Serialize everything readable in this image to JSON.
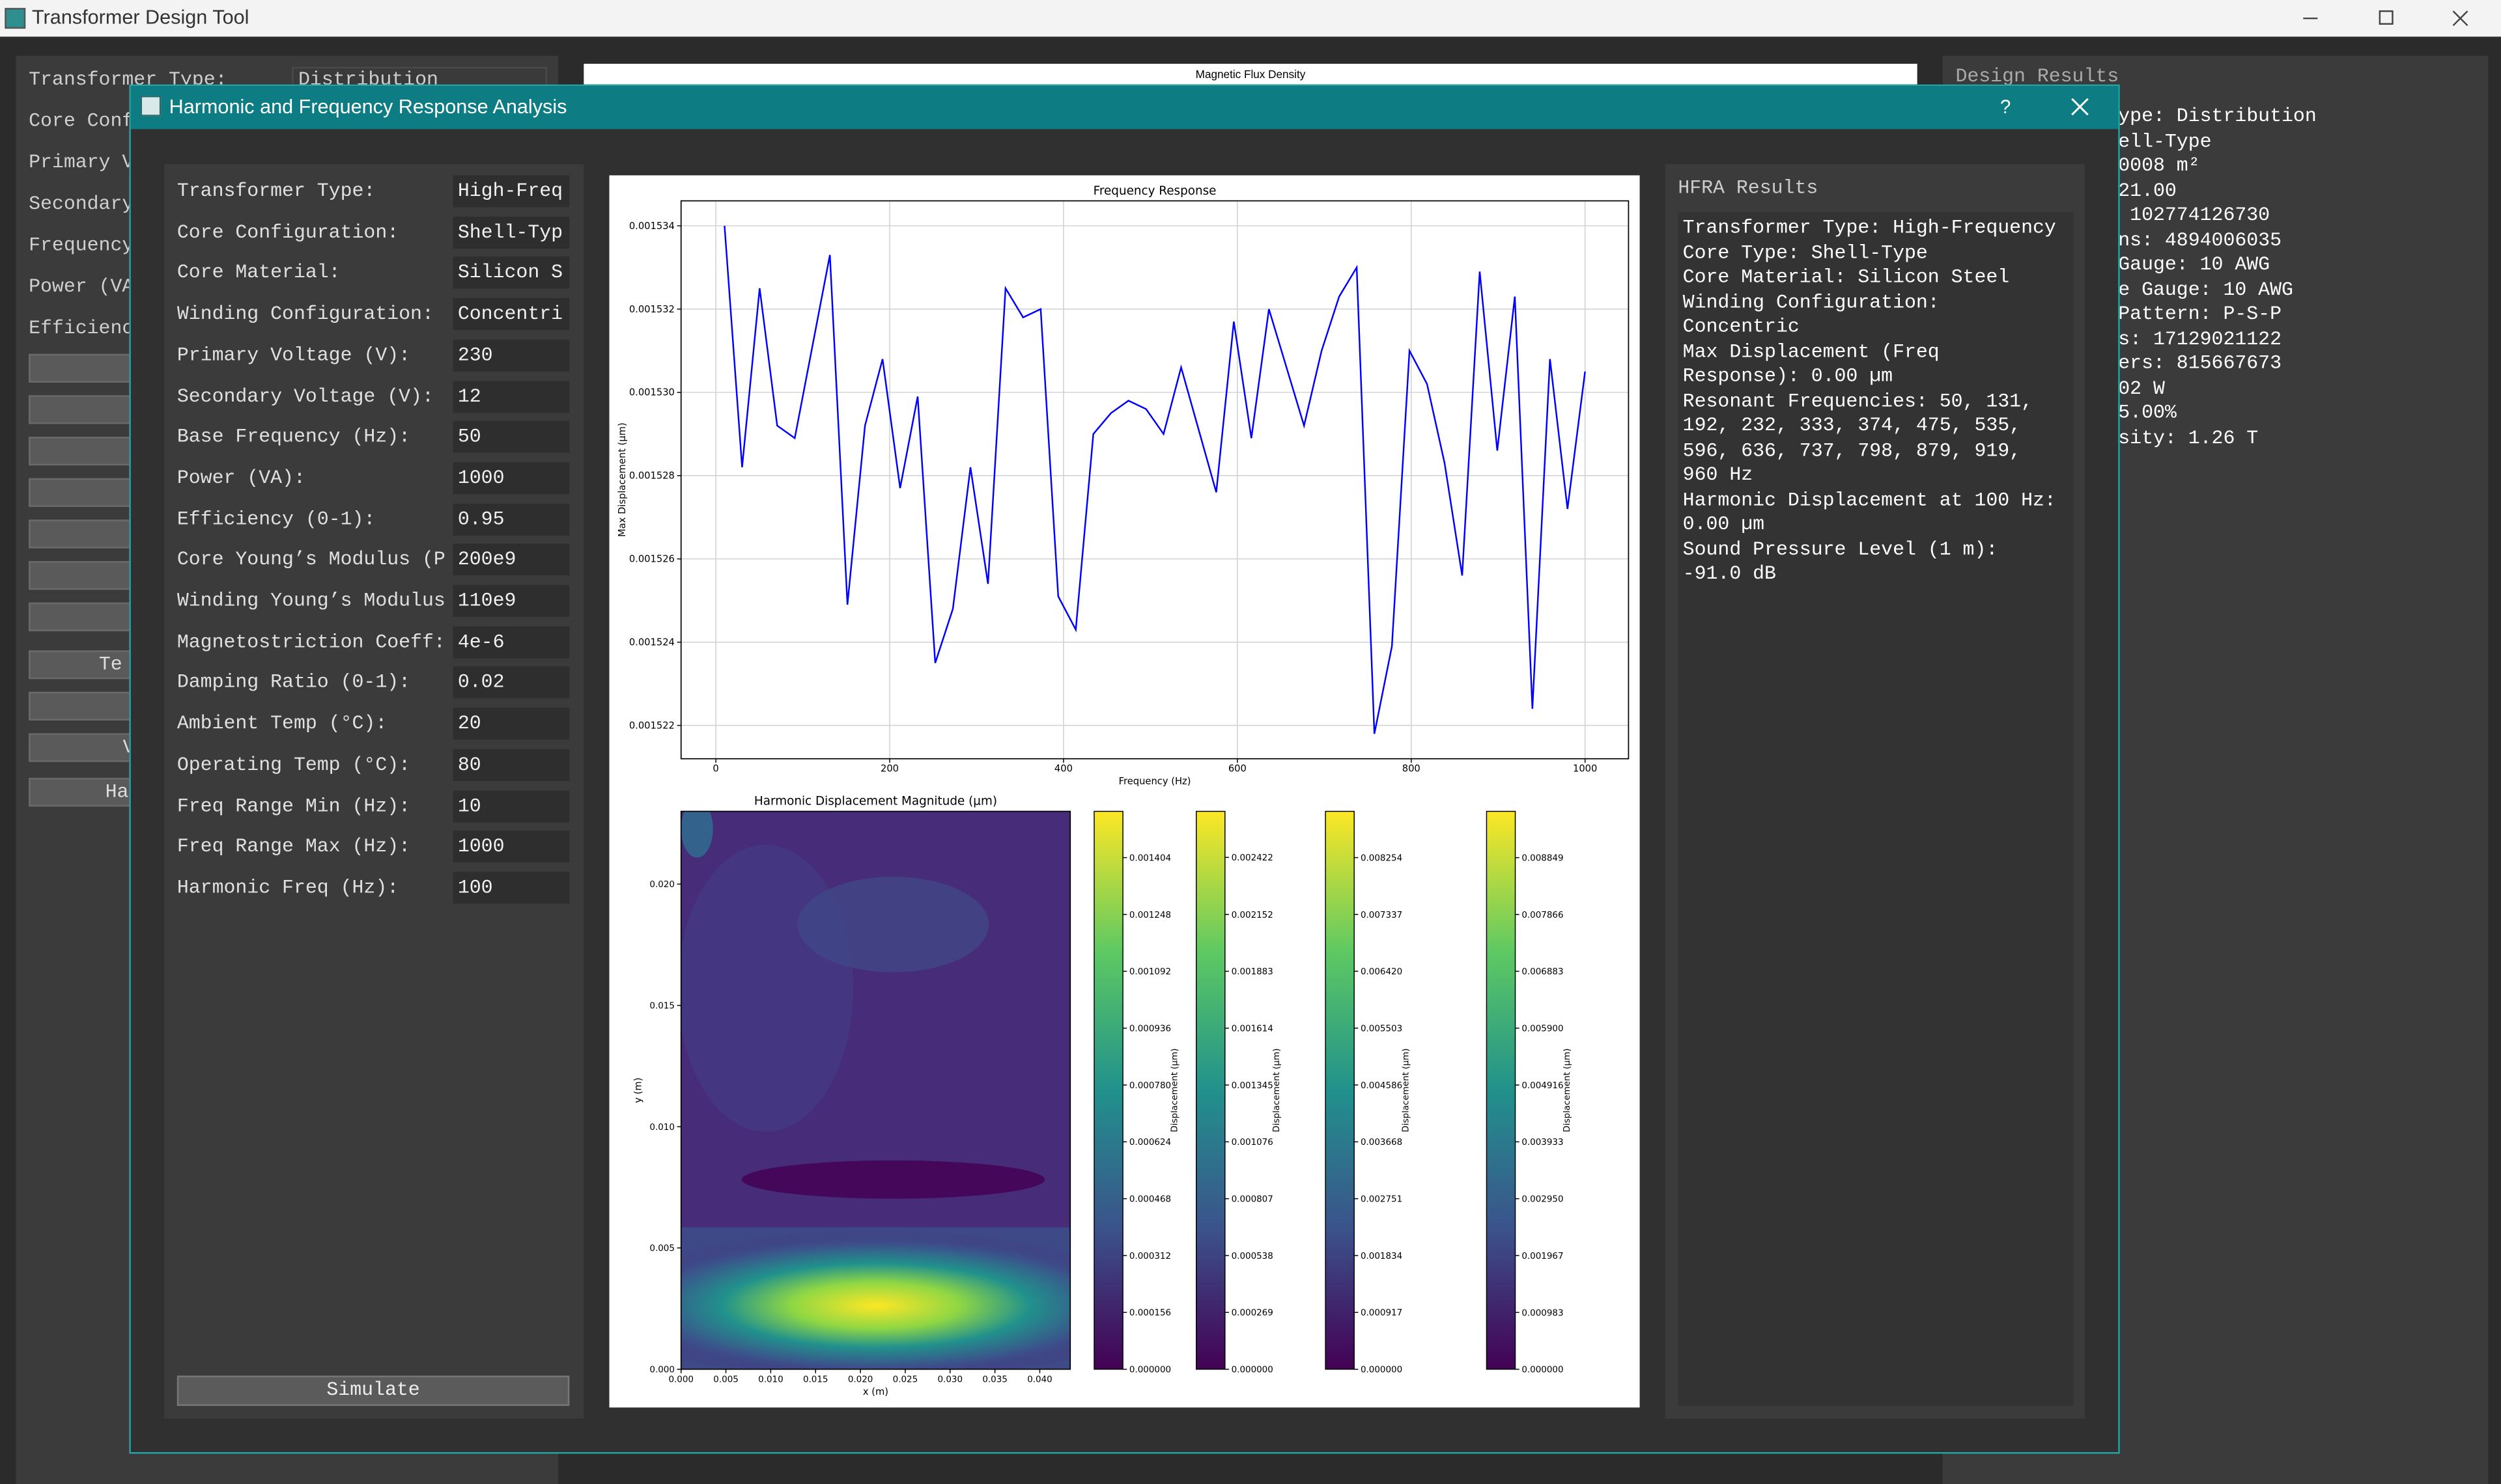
{
  "app": {
    "title": "Transformer Design Tool"
  },
  "main_form": {
    "labels": [
      "Transformer Type:",
      "Core Conf",
      "Primary V",
      "Secondary",
      "Frequency",
      "Power (VA",
      "Efficienc"
    ],
    "type_value": "Distribution",
    "buttons": [
      "Te",
      "V",
      "Ha"
    ]
  },
  "main_plot": {
    "title": "Magnetic Flux Density"
  },
  "main_results": {
    "title": "Design Results",
    "lines": [
      "ype: Distribution",
      "ell-Type",
      "0008 m²",
      "21.00",
      " 102774126730",
      "ns: 4894006035",
      "Gauge: 10 AWG",
      "e Gauge: 10 AWG",
      "Pattern: P-S-P",
      "s: 17129021122",
      "ers: 815667673",
      "02 W",
      "5.00%",
      "sity: 1.26 T"
    ]
  },
  "dialog": {
    "title": "Harmonic and Frequency Response Analysis",
    "help": "?",
    "fields": [
      {
        "label": "Transformer Type:",
        "value": "High-Freq"
      },
      {
        "label": "Core Configuration:",
        "value": "Shell-Typ"
      },
      {
        "label": "Core Material:",
        "value": "Silicon S"
      },
      {
        "label": "Winding Configuration:",
        "value": "Concentri"
      },
      {
        "label": "Primary Voltage (V):",
        "value": "230"
      },
      {
        "label": "Secondary Voltage (V):",
        "value": "12"
      },
      {
        "label": "Base Frequency (Hz):",
        "value": "50"
      },
      {
        "label": "Power (VA):",
        "value": "1000"
      },
      {
        "label": "Efficiency (0-1):",
        "value": "0.95"
      },
      {
        "label": "Core Young’s Modulus (P",
        "value": "200e9"
      },
      {
        "label": "Winding Young’s Modulus",
        "value": "110e9"
      },
      {
        "label": "Magnetostriction Coeff:",
        "value": "4e-6"
      },
      {
        "label": "Damping Ratio (0-1):",
        "value": "0.02"
      },
      {
        "label": "Ambient Temp (°C):",
        "value": "20"
      },
      {
        "label": "Operating Temp (°C):",
        "value": "80"
      },
      {
        "label": "Freq Range Min (Hz):",
        "value": "10"
      },
      {
        "label": "Freq Range Max (Hz):",
        "value": "1000"
      },
      {
        "label": "Harmonic Freq (Hz):",
        "value": "100"
      }
    ],
    "button": "Simulate",
    "results": {
      "title": "HFRA Results",
      "lines": [
        "Transformer Type: High-Frequency",
        "Core Type: Shell-Type",
        "Core Material: Silicon Steel",
        "Winding Configuration:",
        "Concentric",
        "Max Displacement (Freq",
        "Response): 0.00 µm",
        "Resonant Frequencies: 50, 131,",
        "192, 232, 333, 374, 475, 535,",
        "596, 636, 737, 798, 879, 919,",
        "960 Hz",
        "Harmonic Displacement at 100 Hz:",
        "0.00 µm",
        "Sound Pressure Level (1 m):",
        "-91.0 dB"
      ]
    }
  },
  "chart_data": [
    {
      "type": "line",
      "title": "Frequency Response",
      "xlabel": "Frequency (Hz)",
      "ylabel": "Max Displacement (µm)",
      "color": "#0000ff",
      "grid": true,
      "x": [
        10,
        30.2,
        50.4,
        70.6,
        90.8,
        111.0,
        131.2,
        151.4,
        171.6,
        191.8,
        212.0,
        232.2,
        252.4,
        272.7,
        292.9,
        313.1,
        333.3,
        353.5,
        373.7,
        393.9,
        414.1,
        434.3,
        454.5,
        474.7,
        494.9,
        515.1,
        535.3,
        555.5,
        575.7,
        595.9,
        616.1,
        636.3,
        656.5,
        676.7,
        696.9,
        717.1,
        737.3,
        757.6,
        777.8,
        798.0,
        818.2,
        838.4,
        858.6,
        878.8,
        899.0,
        919.2,
        939.4,
        959.6,
        979.8,
        1000
      ],
      "values": [
        0.001534,
        0.0015282,
        0.0015325,
        0.0015292,
        0.0015289,
        0.0015311,
        0.0015333,
        0.0015249,
        0.0015292,
        0.0015308,
        0.0015277,
        0.0015299,
        0.0015235,
        0.0015248,
        0.0015282,
        0.0015254,
        0.0015325,
        0.0015318,
        0.001532,
        0.0015251,
        0.0015243,
        0.001529,
        0.0015295,
        0.0015298,
        0.0015296,
        0.001529,
        0.0015306,
        0.0015291,
        0.0015276,
        0.0015317,
        0.0015289,
        0.001532,
        0.0015306,
        0.0015292,
        0.001531,
        0.0015323,
        0.001533,
        0.0015218,
        0.0015239,
        0.001531,
        0.0015302,
        0.0015283,
        0.0015256,
        0.0015329,
        0.0015286,
        0.0015323,
        0.0015224,
        0.0015308,
        0.0015272,
        0.0015305
      ],
      "xlim": [
        -40,
        1050
      ],
      "ylim": [
        0.0015212,
        0.0015346
      ],
      "xticks": [
        0,
        200,
        400,
        600,
        800,
        1000
      ],
      "yticks": [
        {
          "value": 0.001522,
          "label": "0.001522"
        },
        {
          "value": 0.001524,
          "label": "0.001524"
        },
        {
          "value": 0.001526,
          "label": "0.001526"
        },
        {
          "value": 0.001528,
          "label": "0.001528"
        },
        {
          "value": 0.00153,
          "label": "0.001530"
        },
        {
          "value": 0.001532,
          "label": "0.001532"
        },
        {
          "value": 0.001534,
          "label": "0.001534"
        }
      ]
    },
    {
      "type": "contour",
      "title": "Harmonic Displacement Magnitude (µm)",
      "xlabel": "x (m)",
      "ylabel": "y (m)",
      "xlim": [
        0,
        0.0434
      ],
      "ylim": [
        0,
        0.023
      ],
      "xticks": [
        {
          "value": 0,
          "label": "0.000"
        },
        {
          "value": 0.005,
          "label": "0.005"
        },
        {
          "value": 0.01,
          "label": "0.010"
        },
        {
          "value": 0.015,
          "label": "0.015"
        },
        {
          "value": 0.02,
          "label": "0.020"
        },
        {
          "value": 0.025,
          "label": "0.025"
        },
        {
          "value": 0.03,
          "label": "0.030"
        },
        {
          "value": 0.035,
          "label": "0.035"
        },
        {
          "value": 0.04,
          "label": "0.040"
        }
      ],
      "yticks": [
        {
          "value": 0,
          "label": "0.000"
        },
        {
          "value": 0.005,
          "label": "0.005"
        },
        {
          "value": 0.01,
          "label": "0.010"
        },
        {
          "value": 0.015,
          "label": "0.015"
        },
        {
          "value": 0.02,
          "label": "0.020"
        }
      ],
      "colorbars": [
        {
          "label": "Displacement (µm)",
          "clim": [
            0,
            0.001531
          ],
          "ticks": [
            {
              "value": 0,
              "label": "0.000000"
            },
            {
              "value": 0.000156,
              "label": "0.000156"
            },
            {
              "value": 0.000312,
              "label": "0.000312"
            },
            {
              "value": 0.000468,
              "label": "0.000468"
            },
            {
              "value": 0.000624,
              "label": "0.000624"
            },
            {
              "value": 0.00078,
              "label": "0.000780"
            },
            {
              "value": 0.000936,
              "label": "0.000936"
            },
            {
              "value": 0.001092,
              "label": "0.001092"
            },
            {
              "value": 0.001248,
              "label": "0.001248"
            },
            {
              "value": 0.001404,
              "label": "0.001404"
            }
          ]
        },
        {
          "label": "Displacement (µm)",
          "clim": [
            0,
            0.00264
          ],
          "ticks": [
            {
              "value": 0,
              "label": "0.000000"
            },
            {
              "value": 0.000269,
              "label": "0.000269"
            },
            {
              "value": 0.000538,
              "label": "0.000538"
            },
            {
              "value": 0.000807,
              "label": "0.000807"
            },
            {
              "value": 0.001076,
              "label": "0.001076"
            },
            {
              "value": 0.001345,
              "label": "0.001345"
            },
            {
              "value": 0.001614,
              "label": "0.001614"
            },
            {
              "value": 0.001883,
              "label": "0.001883"
            },
            {
              "value": 0.002152,
              "label": "0.002152"
            },
            {
              "value": 0.002422,
              "label": "0.002422"
            }
          ]
        },
        {
          "label": "Displacement (µm)",
          "clim": [
            0,
            0.009
          ],
          "ticks": [
            {
              "value": 0,
              "label": "0.000000"
            },
            {
              "value": 0.000917,
              "label": "0.000917"
            },
            {
              "value": 0.001834,
              "label": "0.001834"
            },
            {
              "value": 0.002751,
              "label": "0.002751"
            },
            {
              "value": 0.003668,
              "label": "0.003668"
            },
            {
              "value": 0.004586,
              "label": "0.004586"
            },
            {
              "value": 0.005503,
              "label": "0.005503"
            },
            {
              "value": 0.00642,
              "label": "0.006420"
            },
            {
              "value": 0.007337,
              "label": "0.007337"
            },
            {
              "value": 0.008254,
              "label": "0.008254"
            }
          ]
        },
        {
          "label": "Displacement (µm)",
          "clim": [
            0,
            0.00965
          ],
          "ticks": [
            {
              "value": 0,
              "label": "0.000000"
            },
            {
              "value": 0.000983,
              "label": "0.000983"
            },
            {
              "value": 0.001967,
              "label": "0.001967"
            },
            {
              "value": 0.00295,
              "label": "0.002950"
            },
            {
              "value": 0.003933,
              "label": "0.003933"
            },
            {
              "value": 0.004916,
              "label": "0.004916"
            },
            {
              "value": 0.0059,
              "label": "0.005900"
            },
            {
              "value": 0.006883,
              "label": "0.006883"
            },
            {
              "value": 0.007866,
              "label": "0.007866"
            },
            {
              "value": 0.008849,
              "label": "0.008849"
            }
          ]
        }
      ]
    }
  ]
}
